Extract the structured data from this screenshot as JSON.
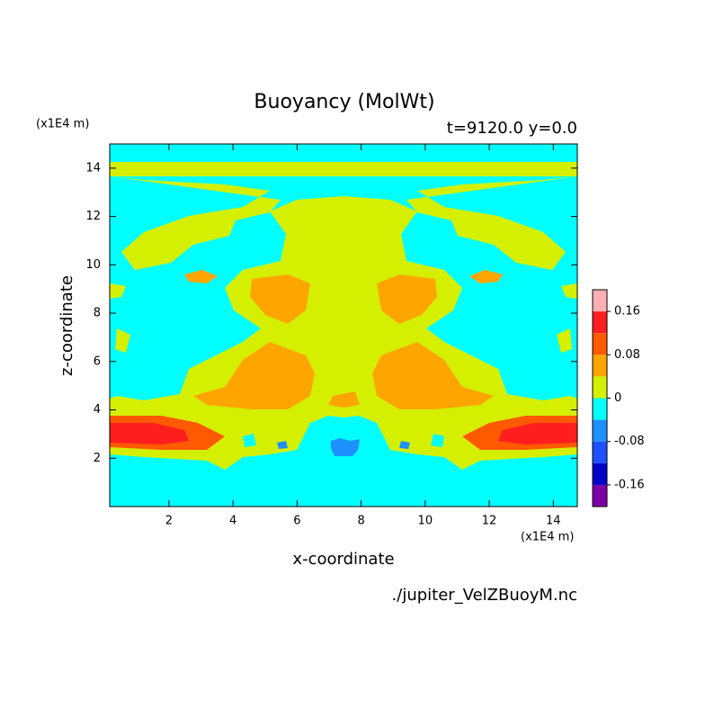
{
  "chart_data": {
    "type": "contour",
    "title": "Buoyancy (MolWt)",
    "subtitle": "t=9120.0 y=0.0",
    "x_label": "x-coordinate",
    "y_label": "z-coordinate",
    "x_unit": "(x1E4 m)",
    "y_unit": "(x1E4 m)",
    "source": "./jupiter_VelZBuoyM.nc",
    "xlim": [
      0.15,
      14.75
    ],
    "xticks": [
      2,
      4,
      6,
      8,
      10,
      12,
      14
    ],
    "ylim": [
      0,
      15
    ],
    "yticks": [
      2,
      4,
      6,
      8,
      10,
      12,
      14
    ],
    "colorbar": {
      "lim": [
        -0.2,
        0.2
      ],
      "ticks": [
        -0.16,
        -0.08,
        0,
        0.08,
        0.16
      ],
      "colors": [
        "#7a00a8",
        "#0000c8",
        "#1e50ff",
        "#1e90ff",
        "#00ffff",
        "#d4f000",
        "#ffa500",
        "#ff5a00",
        "#ff1e1e",
        "#ffb0b4"
      ]
    }
  }
}
